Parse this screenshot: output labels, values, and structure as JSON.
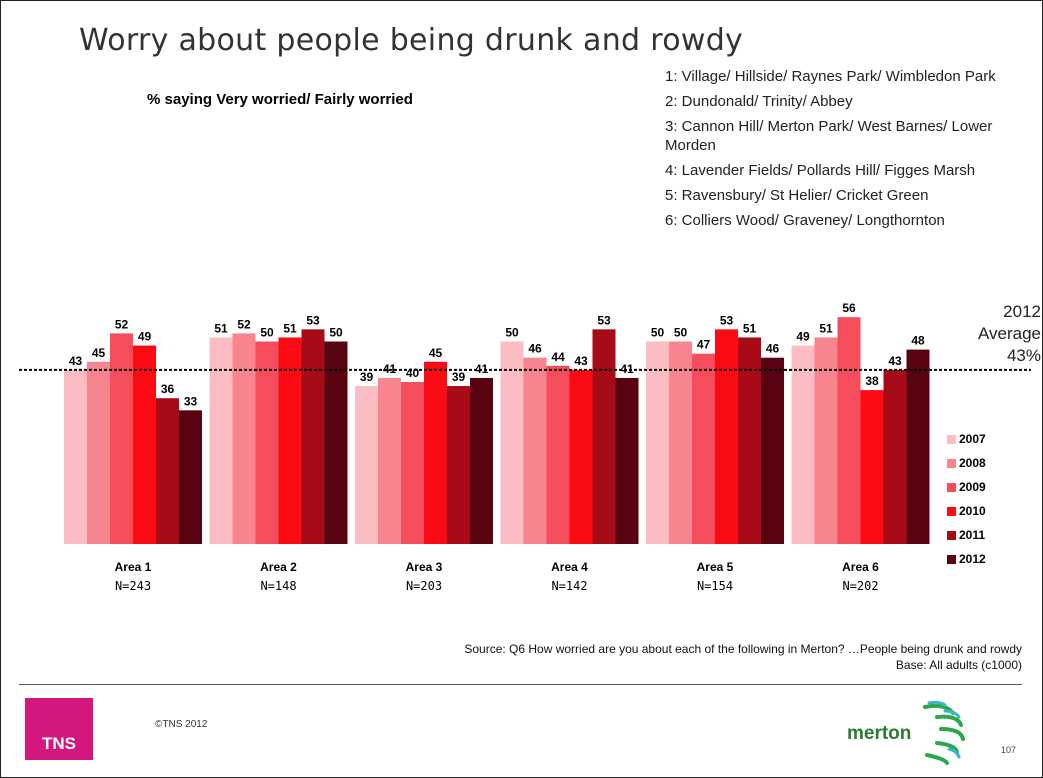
{
  "title": "Worry about people being drunk and rowdy",
  "subtitle": "% saying Very worried/ Fairly worried",
  "area_legend": [
    "1: Village/ Hillside/ Raynes Park/ Wimbledon Park",
    "2: Dundonald/ Trinity/ Abbey",
    "3: Cannon Hill/ Merton Park/ West Barnes/ Lower Morden",
    "4: Lavender Fields/ Pollards Hill/ Figges Marsh",
    "5: Ravensbury/ St Helier/ Cricket Green",
    "6: Colliers Wood/ Graveney/ Longthornton"
  ],
  "average": {
    "line1": "2012",
    "line2": "Average",
    "line3": "43%"
  },
  "source": {
    "line1": "Source: Q6 How worried are you about each of the following in Merton? …People being drunk and rowdy",
    "line2": "Base: All adults (c1000)"
  },
  "footer": {
    "logo": "TNS",
    "copyright": "©TNS 2012",
    "partner_logo": "merton",
    "page": "107"
  },
  "colors": {
    "2007": "#fbbcc4",
    "2008": "#f7848e",
    "2009": "#f64d5c",
    "2010": "#fb0b14",
    "2011": "#a70b17",
    "2012": "#5a0310"
  },
  "chart_data": {
    "type": "bar",
    "categories": [
      "Area 1",
      "Area 2",
      "Area 3",
      "Area 4",
      "Area 5",
      "Area 6"
    ],
    "sample_sizes": [
      "N=243",
      "N=148",
      "N=203",
      "N=142",
      "N=154",
      "N=202"
    ],
    "series": [
      {
        "name": "2007",
        "values": [
          43,
          51,
          39,
          50,
          50,
          49
        ]
      },
      {
        "name": "2008",
        "values": [
          45,
          52,
          41,
          46,
          50,
          51
        ]
      },
      {
        "name": "2009",
        "values": [
          52,
          50,
          40,
          44,
          47,
          56
        ]
      },
      {
        "name": "2010",
        "values": [
          49,
          51,
          45,
          43,
          53,
          38
        ]
      },
      {
        "name": "2011",
        "values": [
          36,
          53,
          39,
          53,
          51,
          43
        ]
      },
      {
        "name": "2012",
        "values": [
          33,
          50,
          41,
          41,
          46,
          48
        ]
      }
    ],
    "reference_line": 43,
    "ylim": [
      0,
      60
    ],
    "legend_position": "right",
    "grid": false
  }
}
